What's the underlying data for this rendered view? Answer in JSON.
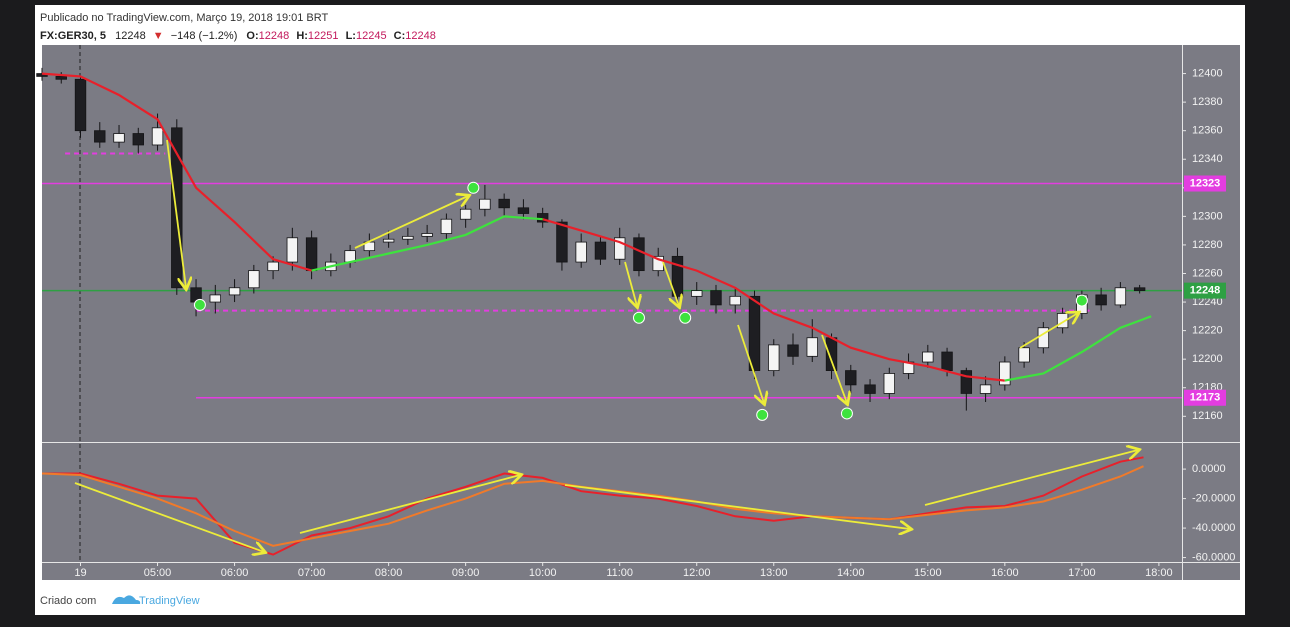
{
  "header": {
    "published": "Publicado no TradingView.com, Março 19, 2018 19:01 BRT",
    "symbol": "FX:GER30, 5",
    "last": "12248",
    "arrow": "▼",
    "change": "−148 (−1.2%)",
    "ohlc": [
      {
        "label": "O:",
        "value": "12248"
      },
      {
        "label": "H:",
        "value": "12251"
      },
      {
        "label": "L:",
        "value": "12245"
      },
      {
        "label": "C:",
        "value": "12248"
      }
    ]
  },
  "footer": {
    "created": "Criado com",
    "brand": "TradingView"
  },
  "chart_data": [
    {
      "type": "candlestick",
      "color_up": "#f4f4f4",
      "color_down": "#1e1e22",
      "xlim": [
        3.5,
        18.3
      ],
      "ylim": [
        12142,
        12420
      ],
      "xticks": [
        {
          "value": 4,
          "label": "19"
        },
        {
          "value": 5,
          "label": "05:00"
        },
        {
          "value": 6,
          "label": "06:00"
        },
        {
          "value": 7,
          "label": "07:00"
        },
        {
          "value": 8,
          "label": "08:00"
        },
        {
          "value": 9,
          "label": "09:00"
        },
        {
          "value": 10,
          "label": "10:00"
        },
        {
          "value": 11,
          "label": "11:00"
        },
        {
          "value": 12,
          "label": "12:00"
        },
        {
          "value": 13,
          "label": "13:00"
        },
        {
          "value": 14,
          "label": "14:00"
        },
        {
          "value": 15,
          "label": "15:00"
        },
        {
          "value": 16,
          "label": "16:00"
        },
        {
          "value": 17,
          "label": "17:00"
        },
        {
          "value": 18,
          "label": "18:00"
        }
      ],
      "yticks": [
        12160,
        12180,
        12200,
        12220,
        12240,
        12260,
        12280,
        12300,
        12320,
        12340,
        12360,
        12380,
        12400
      ],
      "x": [
        3.5,
        3.75,
        4,
        4.25,
        4.5,
        4.75,
        5,
        5.25,
        5.5,
        5.75,
        6,
        6.25,
        6.5,
        6.75,
        7,
        7.25,
        7.5,
        7.75,
        8,
        8.25,
        8.5,
        8.75,
        9,
        9.25,
        9.5,
        9.75,
        10,
        10.25,
        10.5,
        10.75,
        11,
        11.25,
        11.5,
        11.75,
        12,
        12.25,
        12.5,
        12.75,
        13,
        13.25,
        13.5,
        13.75,
        14,
        14.25,
        14.5,
        14.75,
        15,
        15.25,
        15.5,
        15.75,
        16,
        16.25,
        16.5,
        16.75,
        17,
        17.25,
        17.5,
        17.75
      ],
      "open": [
        12400,
        12398,
        12396,
        12360,
        12352,
        12358,
        12350,
        12362,
        12250,
        12240,
        12245,
        12250,
        12262,
        12268,
        12285,
        12262,
        12268,
        12276,
        12282,
        12284,
        12286,
        12288,
        12298,
        12305,
        12312,
        12306,
        12302,
        12296,
        12268,
        12282,
        12270,
        12285,
        12262,
        12272,
        12244,
        12248,
        12238,
        12244,
        12192,
        12210,
        12202,
        12215,
        12192,
        12182,
        12176,
        12190,
        12198,
        12205,
        12192,
        12176,
        12182,
        12198,
        12208,
        12222,
        12232,
        12245,
        12238,
        12250
      ],
      "high": [
        12404,
        12401,
        12398,
        12366,
        12364,
        12362,
        12372,
        12368,
        12256,
        12252,
        12256,
        12266,
        12272,
        12292,
        12290,
        12274,
        12280,
        12288,
        12290,
        12292,
        12294,
        12302,
        12308,
        12322,
        12316,
        12312,
        12306,
        12298,
        12288,
        12286,
        12292,
        12288,
        12278,
        12278,
        12254,
        12252,
        12250,
        12248,
        12214,
        12218,
        12228,
        12218,
        12196,
        12186,
        12194,
        12204,
        12210,
        12208,
        12194,
        12188,
        12202,
        12212,
        12226,
        12236,
        12248,
        12250,
        12254,
        12252
      ],
      "low": [
        12395,
        12393,
        12355,
        12348,
        12348,
        12344,
        12346,
        12245,
        12230,
        12232,
        12240,
        12246,
        12256,
        12262,
        12256,
        12258,
        12264,
        12272,
        12278,
        12280,
        12282,
        12284,
        12292,
        12300,
        12300,
        12298,
        12292,
        12262,
        12264,
        12266,
        12266,
        12258,
        12258,
        12238,
        12238,
        12232,
        12232,
        12186,
        12188,
        12196,
        12198,
        12186,
        12176,
        12170,
        12172,
        12186,
        12194,
        12188,
        12164,
        12170,
        12178,
        12194,
        12204,
        12218,
        12228,
        12234,
        12236,
        12246
      ],
      "close": [
        12398,
        12396,
        12360,
        12352,
        12358,
        12350,
        12362,
        12250,
        12240,
        12245,
        12250,
        12262,
        12268,
        12285,
        12262,
        12268,
        12276,
        12282,
        12284,
        12286,
        12288,
        12298,
        12305,
        12312,
        12306,
        12302,
        12296,
        12268,
        12282,
        12270,
        12285,
        12262,
        12272,
        12244,
        12248,
        12238,
        12244,
        12192,
        12210,
        12202,
        12215,
        12192,
        12182,
        12176,
        12190,
        12198,
        12205,
        12192,
        12176,
        12182,
        12198,
        12208,
        12222,
        12232,
        12245,
        12238,
        12250,
        12248
      ],
      "line_x": [
        3.5,
        4,
        4.5,
        5,
        5.5,
        6,
        6.5,
        7,
        7.5,
        8,
        8.5,
        9,
        9.5,
        10,
        10.5,
        11,
        11.5,
        12,
        12.5,
        13,
        13.5,
        14,
        14.5,
        15,
        15.5,
        16,
        16.5,
        17,
        17.5,
        17.9
      ],
      "lines": [
        {
          "color": "#e8202a",
          "values": [
            12400,
            12398,
            12385,
            12368,
            12320,
            12296,
            12270,
            12262,
            null,
            null,
            null,
            null,
            null,
            12298,
            12290,
            12282,
            12270,
            12262,
            12250,
            12232,
            12222,
            12208,
            12200,
            12195,
            12188,
            12185,
            null,
            null,
            null,
            null
          ]
        },
        {
          "color": "#3ee23e",
          "values": [
            null,
            null,
            null,
            null,
            null,
            null,
            null,
            12262,
            12268,
            12274,
            12280,
            12287,
            12300,
            12298,
            null,
            null,
            null,
            null,
            null,
            null,
            null,
            null,
            null,
            null,
            null,
            12185,
            12190,
            12205,
            12222,
            12230
          ]
        }
      ],
      "levels": [
        {
          "value": 12323,
          "color": "#e33de0",
          "x": [
            3.5,
            18.3
          ],
          "dashed": false,
          "label_box": true
        },
        {
          "value": 12248,
          "color": "#2ea043",
          "x": [
            3.5,
            18.3
          ],
          "dashed": false,
          "label_box": true
        },
        {
          "value": 12234,
          "color": "#e33de0",
          "x": [
            5.5,
            17.1
          ],
          "dashed": true,
          "label_box": false
        },
        {
          "value": 12344,
          "color": "#e33de0",
          "x": [
            3.8,
            5.1
          ],
          "dashed": true,
          "label_box": false
        },
        {
          "value": 12173,
          "color": "#e33de0",
          "x": [
            5.5,
            18.3
          ],
          "dashed": false,
          "label_box": true
        }
      ],
      "signals": {
        "color": "#3ee23e",
        "x": [
          5.55,
          9.1,
          11.25,
          11.85,
          12.85,
          13.95,
          17.0
        ],
        "values": [
          12238,
          12320,
          12229,
          12229,
          12161,
          12162,
          12241
        ]
      }
    },
    {
      "type": "line",
      "xlim": [
        3.5,
        18.3
      ],
      "ylim": [
        -63,
        17.7
      ],
      "yticks": [
        {
          "value": 0,
          "label": "0.0000"
        },
        {
          "value": -20,
          "label": "-20.0000"
        },
        {
          "value": -40,
          "label": "-40.0000"
        },
        {
          "value": -60,
          "label": "-60.0000"
        }
      ],
      "x": [
        3.5,
        4,
        4.5,
        5,
        5.5,
        6,
        6.5,
        7,
        7.5,
        8,
        8.5,
        9,
        9.5,
        10,
        10.5,
        11,
        11.5,
        12,
        12.5,
        13,
        13.5,
        14,
        14.5,
        15,
        15.5,
        16,
        16.5,
        17,
        17.5,
        17.8
      ],
      "series": [
        {
          "color": "#e8202a",
          "values": [
            -3,
            -3,
            -10,
            -18,
            -20,
            -50,
            -58,
            -45,
            -40,
            -32,
            -20,
            -12,
            -3,
            -6,
            -15,
            -18,
            -20,
            -25,
            -32,
            -35,
            -32,
            -33,
            -34,
            -30,
            -26,
            -25,
            -18,
            -5,
            5,
            8
          ]
        },
        {
          "color": "#f07a2a",
          "values": [
            -3,
            -4,
            -12,
            -20,
            -30,
            -42,
            -52,
            -47,
            -42,
            -37,
            -28,
            -20,
            -10,
            -8,
            -12,
            -15,
            -18,
            -22,
            -27,
            -30,
            -32,
            -33,
            -34,
            -31,
            -28,
            -26,
            -22,
            -14,
            -5,
            2
          ]
        }
      ]
    }
  ]
}
